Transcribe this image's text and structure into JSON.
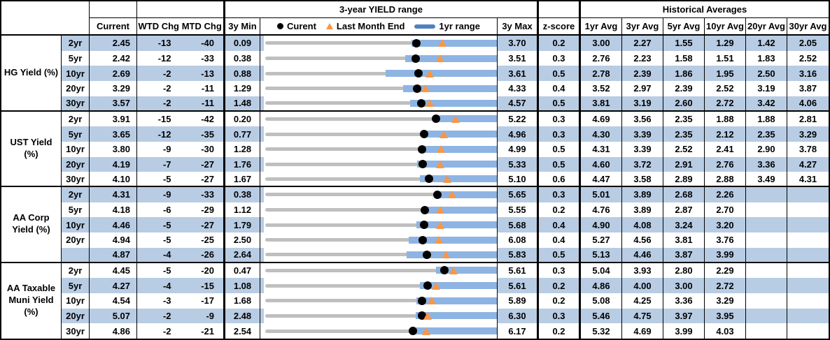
{
  "header": {
    "range_title": "3-year YIELD range",
    "historical_title": "Historical Averages",
    "col_current": "Current",
    "col_wtd": "WTD Chg",
    "col_mtd": "MTD Chg",
    "col_3y_min": "3y Min",
    "col_3y_max": "3y Max",
    "col_zscore": "z-score",
    "avg_cols": [
      "1yr Avg",
      "3yr Avg",
      "5yr Avg",
      "10yr Avg",
      "20yr Avg",
      "30yr Avg"
    ]
  },
  "legend": {
    "current_label": "Curent",
    "last_month_end_label": "Last Month End",
    "range_label": "1yr range",
    "current_icon": "black-dot",
    "last_month_end_icon": "orange-triangle",
    "range_icon": "blue-bar"
  },
  "colors": {
    "row_band": "#B8CCE4",
    "range_bar": "#8EB4E3",
    "track": "#BFBFBF",
    "marker_dot": "#000000",
    "marker_triangle": "#F79646",
    "legend_swatch": "#4F81BD",
    "border": "#000000"
  },
  "chart_data": {
    "type": "table",
    "title": "3-year YIELD range with Historical Averages",
    "avg_names": [
      "1yr",
      "3yr",
      "5yr",
      "10yr",
      "20yr",
      "30yr"
    ],
    "notes": "Each row: dot = Current yield, triangle = Last Month End (Current - MTD Chg/100), blue bar = 1yr range, gray track = 3y range from 3y Min to 3y Max. 1yr low values are estimated from bar pixel positions; 1yr high equals 3y Max in every row.",
    "sections": [
      {
        "label": "HG Yield (%)",
        "rows": [
          {
            "tenor": "2yr",
            "current": "2.45",
            "wtd": "-13",
            "mtd": "-40",
            "min3y": "0.09",
            "max3y": "3.70",
            "z": "0.2",
            "avgs": [
              "3.00",
              "2.27",
              "1.55",
              "1.29",
              "1.42",
              "2.05"
            ],
            "last_month_end": 2.85,
            "yr1_low": 2.38,
            "yr1_high": 3.7
          },
          {
            "tenor": "5yr",
            "current": "2.42",
            "wtd": "-12",
            "mtd": "-33",
            "min3y": "0.38",
            "max3y": "3.51",
            "z": "0.3",
            "avgs": [
              "2.76",
              "2.23",
              "1.58",
              "1.51",
              "1.83",
              "2.52"
            ],
            "last_month_end": 2.75,
            "yr1_low": 2.28,
            "yr1_high": 3.51
          },
          {
            "tenor": "10yr",
            "current": "2.69",
            "wtd": "-2",
            "mtd": "-13",
            "min3y": "0.88",
            "max3y": "3.61",
            "z": "0.5",
            "avgs": [
              "2.78",
              "2.39",
              "1.86",
              "1.95",
              "2.50",
              "3.16"
            ],
            "last_month_end": 2.82,
            "yr1_low": 2.31,
            "yr1_high": 3.61
          },
          {
            "tenor": "20yr",
            "current": "3.29",
            "wtd": "-2",
            "mtd": "-11",
            "min3y": "1.29",
            "max3y": "4.33",
            "z": "0.4",
            "avgs": [
              "3.52",
              "2.97",
              "2.39",
              "2.52",
              "3.19",
              "3.87"
            ],
            "last_month_end": 3.4,
            "yr1_low": 3.11,
            "yr1_high": 4.33
          },
          {
            "tenor": "30yr",
            "current": "3.57",
            "wtd": "-2",
            "mtd": "-11",
            "min3y": "1.48",
            "max3y": "4.57",
            "z": "0.5",
            "avgs": [
              "3.81",
              "3.19",
              "2.60",
              "2.72",
              "3.42",
              "4.06"
            ],
            "last_month_end": 3.68,
            "yr1_low": 3.42,
            "yr1_high": 4.57
          }
        ]
      },
      {
        "label": "UST Yield (%)",
        "rows": [
          {
            "tenor": "2yr",
            "current": "3.91",
            "wtd": "-15",
            "mtd": "-42",
            "min3y": "0.20",
            "max3y": "5.22",
            "z": "0.3",
            "avgs": [
              "4.69",
              "3.56",
              "2.35",
              "1.88",
              "1.88",
              "2.81"
            ],
            "last_month_end": 4.33,
            "yr1_low": 3.87,
            "yr1_high": 5.22
          },
          {
            "tenor": "5yr",
            "current": "3.65",
            "wtd": "-12",
            "mtd": "-35",
            "min3y": "0.77",
            "max3y": "4.96",
            "z": "0.3",
            "avgs": [
              "4.30",
              "3.39",
              "2.35",
              "2.12",
              "2.35",
              "3.29"
            ],
            "last_month_end": 4.0,
            "yr1_low": 3.62,
            "yr1_high": 4.96
          },
          {
            "tenor": "10yr",
            "current": "3.80",
            "wtd": "-9",
            "mtd": "-30",
            "min3y": "1.28",
            "max3y": "4.99",
            "z": "0.5",
            "avgs": [
              "4.31",
              "3.39",
              "2.52",
              "2.41",
              "2.90",
              "3.78"
            ],
            "last_month_end": 4.1,
            "yr1_low": 3.77,
            "yr1_high": 4.99
          },
          {
            "tenor": "20yr",
            "current": "4.19",
            "wtd": "-7",
            "mtd": "-27",
            "min3y": "1.76",
            "max3y": "5.33",
            "z": "0.5",
            "avgs": [
              "4.60",
              "3.72",
              "2.91",
              "2.76",
              "3.36",
              "4.27"
            ],
            "last_month_end": 4.46,
            "yr1_low": 4.11,
            "yr1_high": 5.33
          },
          {
            "tenor": "30yr",
            "current": "4.10",
            "wtd": "-5",
            "mtd": "-27",
            "min3y": "1.67",
            "max3y": "5.10",
            "z": "0.6",
            "avgs": [
              "4.47",
              "3.58",
              "2.89",
              "2.88",
              "3.49",
              "4.31"
            ],
            "last_month_end": 4.37,
            "yr1_low": 3.97,
            "yr1_high": 5.1
          }
        ]
      },
      {
        "label": "AA Corp Yield (%)",
        "rows": [
          {
            "tenor": "2yr",
            "current": "4.31",
            "wtd": "-9",
            "mtd": "-33",
            "min3y": "0.38",
            "max3y": "5.65",
            "z": "0.3",
            "avgs": [
              "5.01",
              "3.89",
              "2.68",
              "2.26",
              "",
              ""
            ],
            "last_month_end": 4.64,
            "yr1_low": 4.25,
            "yr1_high": 5.65
          },
          {
            "tenor": "5yr",
            "current": "4.18",
            "wtd": "-6",
            "mtd": "-29",
            "min3y": "1.12",
            "max3y": "5.55",
            "z": "0.2",
            "avgs": [
              "4.76",
              "3.89",
              "2.87",
              "2.70",
              "",
              ""
            ],
            "last_month_end": 4.47,
            "yr1_low": 4.12,
            "yr1_high": 5.55
          },
          {
            "tenor": "10yr",
            "current": "4.46",
            "wtd": "-5",
            "mtd": "-27",
            "min3y": "1.79",
            "max3y": "5.68",
            "z": "0.4",
            "avgs": [
              "4.90",
              "4.08",
              "3.24",
              "3.20",
              "",
              ""
            ],
            "last_month_end": 4.73,
            "yr1_low": 4.34,
            "yr1_high": 5.68
          },
          {
            "tenor": "20yr",
            "current": "4.94",
            "wtd": "-5",
            "mtd": "-25",
            "min3y": "2.50",
            "max3y": "6.08",
            "z": "0.4",
            "avgs": [
              "5.27",
              "4.56",
              "3.81",
              "3.76",
              "",
              ""
            ],
            "last_month_end": 5.19,
            "yr1_low": 4.73,
            "yr1_high": 6.08
          },
          {
            "tenor": "",
            "current": "4.87",
            "wtd": "-4",
            "mtd": "-26",
            "min3y": "2.64",
            "max3y": "5.83",
            "z": "0.5",
            "avgs": [
              "5.13",
              "4.46",
              "3.87",
              "3.99",
              "",
              ""
            ],
            "last_month_end": 5.13,
            "yr1_low": 4.59,
            "yr1_high": 5.83
          }
        ]
      },
      {
        "label": "AA Taxable Muni Yield (%)",
        "rows": [
          {
            "tenor": "2yr",
            "current": "4.45",
            "wtd": "-5",
            "mtd": "-20",
            "min3y": "0.47",
            "max3y": "5.61",
            "z": "0.3",
            "avgs": [
              "5.04",
              "3.93",
              "2.80",
              "2.29",
              "",
              ""
            ],
            "last_month_end": 4.65,
            "yr1_low": 4.27,
            "yr1_high": 5.61
          },
          {
            "tenor": "5yr",
            "current": "4.27",
            "wtd": "-4",
            "mtd": "-15",
            "min3y": "1.08",
            "max3y": "5.61",
            "z": "0.2",
            "avgs": [
              "4.86",
              "4.00",
              "3.00",
              "2.72",
              "",
              ""
            ],
            "last_month_end": 4.42,
            "yr1_low": 4.12,
            "yr1_high": 5.61
          },
          {
            "tenor": "10yr",
            "current": "4.54",
            "wtd": "-3",
            "mtd": "-17",
            "min3y": "1.68",
            "max3y": "5.89",
            "z": "0.2",
            "avgs": [
              "5.08",
              "4.25",
              "3.36",
              "3.29",
              "",
              ""
            ],
            "last_month_end": 4.71,
            "yr1_low": 4.44,
            "yr1_high": 5.89
          },
          {
            "tenor": "20yr",
            "current": "5.07",
            "wtd": "-2",
            "mtd": "-9",
            "min3y": "2.48",
            "max3y": "6.30",
            "z": "0.3",
            "avgs": [
              "5.46",
              "4.75",
              "3.97",
              "3.95",
              "",
              ""
            ],
            "last_month_end": 5.16,
            "yr1_low": 4.97,
            "yr1_high": 6.3
          },
          {
            "tenor": "30yr",
            "current": "4.86",
            "wtd": "-2",
            "mtd": "-21",
            "min3y": "2.54",
            "max3y": "6.17",
            "z": "0.2",
            "avgs": [
              "5.32",
              "4.69",
              "3.99",
              "4.03",
              "",
              ""
            ],
            "last_month_end": 5.07,
            "yr1_low": 4.82,
            "yr1_high": 6.17
          }
        ]
      }
    ]
  }
}
